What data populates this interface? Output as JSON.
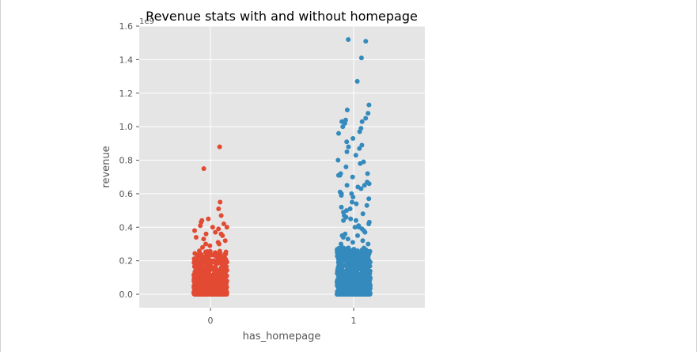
{
  "chart_data": {
    "type": "scatter",
    "subtype": "strip",
    "title": "Revenue stats with and without homepage",
    "xlabel": "has_homepage",
    "ylabel": "revenue",
    "y_offset_label": "1e9",
    "y_tick_labels": [
      "0.0",
      "0.2",
      "0.4",
      "0.6",
      "0.8",
      "1.0",
      "1.2",
      "1.4",
      "1.6"
    ],
    "ylim": [
      -0.08,
      1.6
    ],
    "categories": [
      "0",
      "1"
    ],
    "grid": true,
    "background": "#e5e5e5",
    "series": [
      {
        "category": "0",
        "color": "#e24a33",
        "outliers": [
          0.88,
          0.75,
          0.55,
          0.51,
          0.47,
          0.45,
          0.44,
          0.43,
          0.42,
          0.41,
          0.4,
          0.4,
          0.39,
          0.38,
          0.37,
          0.36,
          0.36,
          0.35,
          0.34,
          0.33,
          0.32,
          0.31,
          0.3,
          0.3,
          0.29,
          0.28
        ]
      },
      {
        "category": "1",
        "color": "#348abd",
        "outliers": [
          1.52,
          1.51,
          1.41,
          1.27,
          1.13,
          1.1,
          1.08,
          1.05,
          1.04,
          1.03,
          1.03,
          1.02,
          1.0,
          0.99,
          0.97,
          0.96,
          0.93,
          0.91,
          0.89,
          0.88,
          0.87,
          0.85,
          0.83,
          0.8,
          0.79,
          0.78,
          0.76,
          0.72,
          0.72,
          0.71,
          0.71,
          0.7,
          0.67,
          0.66,
          0.65,
          0.65,
          0.64,
          0.63,
          0.61,
          0.6,
          0.6,
          0.59,
          0.58,
          0.57,
          0.55,
          0.54,
          0.53,
          0.52,
          0.51,
          0.5,
          0.49,
          0.48,
          0.47,
          0.46,
          0.45,
          0.44,
          0.44,
          0.43,
          0.42,
          0.41,
          0.4,
          0.4,
          0.39,
          0.38,
          0.37,
          0.36,
          0.35,
          0.35,
          0.34,
          0.33,
          0.32,
          0.31,
          0.3,
          0.3
        ]
      }
    ]
  }
}
